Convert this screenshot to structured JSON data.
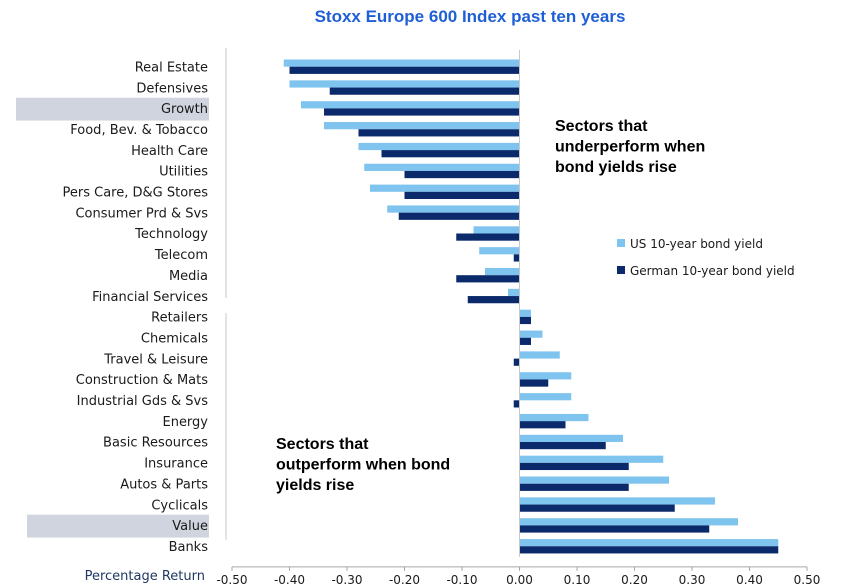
{
  "chart_data": {
    "type": "bar",
    "orientation": "horizontal",
    "title": "Stoxx Europe 600 Index past ten years",
    "xlabel": "Percentage Return",
    "ylabel": "",
    "xlim": [
      -0.5,
      0.5
    ],
    "xticks": [
      "-0.50",
      "-0.40",
      "-0.30",
      "-0.20",
      "-0.10",
      "0.00",
      "0.10",
      "0.20",
      "0.30",
      "0.40",
      "0.50"
    ],
    "categories": [
      "Real Estate",
      "Defensives",
      "Growth",
      "Food, Bev. & Tobacco",
      "Health Care",
      "Utilities",
      "Pers Care, D&G Stores",
      "Consumer Prd & Svs",
      "Technology",
      "Telecom",
      "Media",
      "Financial Services",
      "Retailers",
      "Chemicals",
      "Travel & Leisure",
      "Construction & Mats",
      "Industrial Gds & Svs",
      "Energy",
      "Basic Resources",
      "Insurance",
      "Autos & Parts",
      "Cyclicals",
      "Value",
      "Banks"
    ],
    "highlighted_categories": [
      "Growth",
      "Value"
    ],
    "series": [
      {
        "name": "US 10-year bond yield",
        "color": "#7fc4ef",
        "values": [
          -0.41,
          -0.4,
          -0.38,
          -0.34,
          -0.28,
          -0.27,
          -0.26,
          -0.23,
          -0.08,
          -0.07,
          -0.06,
          -0.02,
          0.02,
          0.04,
          0.07,
          0.09,
          0.09,
          0.12,
          0.18,
          0.25,
          0.26,
          0.34,
          0.38,
          0.45
        ]
      },
      {
        "name": "German 10-year bond yield",
        "color": "#0b2a6b",
        "values": [
          -0.4,
          -0.33,
          -0.34,
          -0.28,
          -0.24,
          -0.2,
          -0.2,
          -0.21,
          -0.11,
          -0.01,
          -0.11,
          -0.09,
          0.02,
          0.02,
          -0.01,
          0.05,
          -0.01,
          0.08,
          0.15,
          0.19,
          0.19,
          0.27,
          0.33,
          0.45
        ]
      }
    ],
    "annotations": {
      "underperform": [
        "Sectors that",
        "underperform when",
        "bond yields rise"
      ],
      "outperform": [
        "Sectors that",
        "outperform when bond",
        "yields rise"
      ]
    },
    "legend_position": "right",
    "grid": false
  }
}
